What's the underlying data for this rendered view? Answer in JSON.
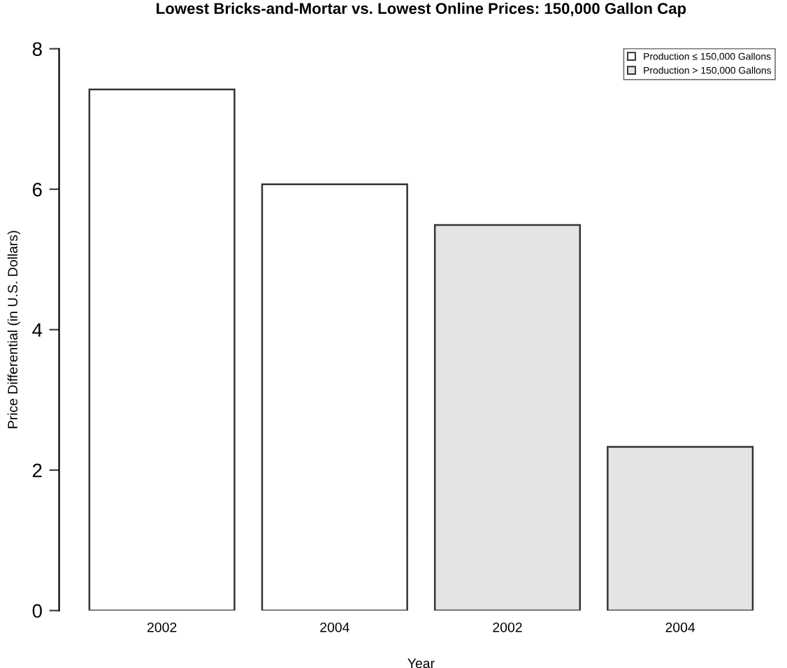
{
  "chart_data": {
    "type": "bar",
    "title": "Lowest Bricks-and-Mortar vs. Lowest Online Prices: 150,000 Gallon Cap",
    "xlabel": "Year",
    "ylabel": "Price Differential (in U.S. Dollars)",
    "categories": [
      "2002",
      "2004",
      "2002",
      "2004"
    ],
    "series": [
      {
        "name": "Production ≤ 150,000 Gallons",
        "color": "#ffffff",
        "values": [
          7.42,
          6.07,
          null,
          null
        ]
      },
      {
        "name": "Production > 150,000 Gallons",
        "color": "#e4e4e4",
        "values": [
          null,
          null,
          5.49,
          2.33
        ]
      }
    ],
    "ylim": [
      0,
      8
    ],
    "yticks": [
      0,
      2,
      4,
      6,
      8
    ],
    "grid": false,
    "legend": "top right"
  }
}
